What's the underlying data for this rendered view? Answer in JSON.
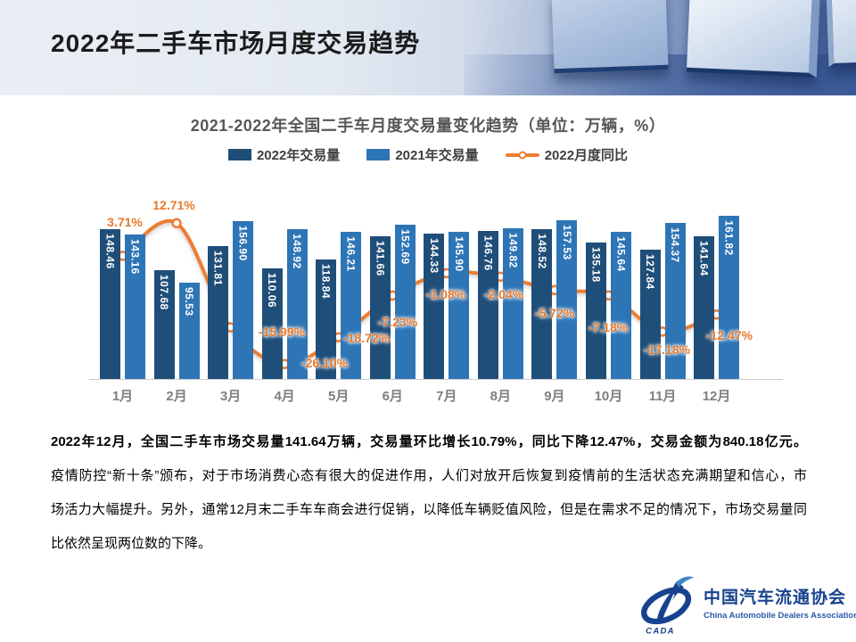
{
  "page_title": "2022年二手车市场月度交易趋势",
  "chart_data": {
    "type": "bar+line",
    "title": "2021-2022年全国二手车月度交易量变化趋势（单位：万辆，%）",
    "categories": [
      "1月",
      "2月",
      "3月",
      "4月",
      "5月",
      "6月",
      "7月",
      "8月",
      "9月",
      "10月",
      "11月",
      "12月"
    ],
    "series": [
      {
        "name": "2022年交易量",
        "type": "bar",
        "color": "#1F4E79",
        "values": [
          148.46,
          107.68,
          131.81,
          110.06,
          118.84,
          141.66,
          144.33,
          146.76,
          148.52,
          135.18,
          127.84,
          141.64
        ]
      },
      {
        "name": "2021年交易量",
        "type": "bar",
        "color": "#2E75B6",
        "values": [
          143.16,
          95.53,
          156.9,
          148.92,
          146.21,
          152.69,
          145.9,
          149.82,
          157.53,
          145.64,
          154.37,
          161.82
        ]
      },
      {
        "name": "2022月度同比",
        "type": "line",
        "color": "#ED7D31",
        "unit": "%",
        "values": [
          3.71,
          12.71,
          -15.99,
          -26.1,
          -18.72,
          -7.23,
          -1.08,
          -2.04,
          -5.72,
          -7.18,
          -17.18,
          -12.47
        ],
        "labels": [
          "3.71%",
          "12.71%",
          "-15.99%",
          "-26.10%",
          "-18.72%",
          "-7.23%",
          "-1.08%",
          "-2.04%",
          "-5.72%",
          "-7.18%",
          "-17.18%",
          "-12.47%"
        ]
      }
    ],
    "value_unit": "万辆",
    "legend_position": "top",
    "gridlines": false,
    "y_axis_visible": false
  },
  "commentary": {
    "lines": [
      "2022年12月，全国二手车市场交易量141.64万辆，交易量环比增长10.79%，同比下降12.47%，交易金额为840.18亿元。",
      "疫情防控“新十条”颁布，对于市场消费心态有很大的促进作用，人们对放开后恢复到疫情前的生活状态充满期望和信心，市",
      "场活力大幅提升。另外，通常12月末二手车车商会进行促销，以降低车辆贬值风险，但是在需求不足的情况下，市场交易量同",
      "比依然呈现两位数的下降。"
    ]
  },
  "logo": {
    "badge": "CADA",
    "name_cn": "中国汽车流通协会",
    "name_en": "China Automobile Dealers Association"
  }
}
